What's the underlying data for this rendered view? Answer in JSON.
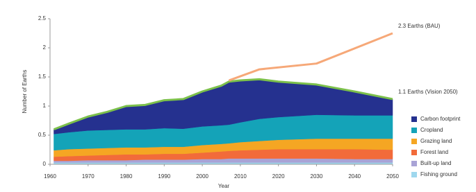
{
  "chart_data": {
    "type": "stacked-area",
    "x_label": "Year",
    "y_label": "Number of Earths",
    "x": [
      1961,
      1965,
      1970,
      1975,
      1980,
      1985,
      1990,
      1995,
      2000,
      2005,
      2007,
      2010,
      2015,
      2020,
      2030,
      2040,
      2050
    ],
    "series": [
      {
        "name": "Fishing ground",
        "color": "#9fd8ee",
        "values": [
          0.03,
          0.03,
          0.03,
          0.03,
          0.03,
          0.03,
          0.03,
          0.03,
          0.03,
          0.03,
          0.03,
          0.03,
          0.03,
          0.03,
          0.03,
          0.03,
          0.03
        ]
      },
      {
        "name": "Built-up land",
        "color": "#a9a3d6",
        "values": [
          0.03,
          0.03,
          0.04,
          0.04,
          0.04,
          0.05,
          0.05,
          0.05,
          0.06,
          0.06,
          0.07,
          0.07,
          0.07,
          0.07,
          0.07,
          0.06,
          0.06
        ]
      },
      {
        "name": "Forest land",
        "color": "#f26b3a",
        "values": [
          0.07,
          0.08,
          0.08,
          0.09,
          0.1,
          0.09,
          0.1,
          0.1,
          0.11,
          0.13,
          0.13,
          0.14,
          0.15,
          0.16,
          0.16,
          0.17,
          0.16
        ]
      },
      {
        "name": "Grazing land",
        "color": "#f5a623",
        "values": [
          0.11,
          0.12,
          0.12,
          0.12,
          0.12,
          0.12,
          0.12,
          0.12,
          0.13,
          0.13,
          0.13,
          0.14,
          0.15,
          0.16,
          0.18,
          0.18,
          0.19
        ]
      },
      {
        "name": "Cropland",
        "color": "#14a3b8",
        "values": [
          0.28,
          0.29,
          0.31,
          0.31,
          0.31,
          0.31,
          0.32,
          0.31,
          0.32,
          0.32,
          0.32,
          0.34,
          0.38,
          0.39,
          0.41,
          0.4,
          0.4
        ]
      },
      {
        "name": "Carbon footprint",
        "color": "#25318f",
        "values": [
          0.08,
          0.15,
          0.24,
          0.31,
          0.4,
          0.42,
          0.48,
          0.51,
          0.6,
          0.68,
          0.74,
          0.72,
          0.68,
          0.61,
          0.52,
          0.41,
          0.28
        ]
      }
    ],
    "lines": [
      {
        "label": "1.1 Earths (Vision 2050)",
        "color": "#7cc04b",
        "x": [
          1961,
          1965,
          1970,
          1975,
          1980,
          1985,
          1990,
          1995,
          2000,
          2005,
          2007,
          2010,
          2015,
          2020,
          2030,
          2040,
          2050
        ],
        "values": [
          0.6,
          0.7,
          0.82,
          0.9,
          1.0,
          1.02,
          1.1,
          1.12,
          1.25,
          1.35,
          1.42,
          1.44,
          1.46,
          1.42,
          1.37,
          1.25,
          1.12
        ]
      },
      {
        "label": "2.3 Earths (BAU)",
        "color": "#f6a878",
        "x": [
          2007,
          2015,
          2030,
          2050
        ],
        "values": [
          1.44,
          1.63,
          1.73,
          2.25
        ]
      }
    ],
    "xlim": [
      1960,
      2050
    ],
    "xticks": [
      1960,
      1970,
      1980,
      1990,
      2000,
      2010,
      2020,
      2030,
      2040,
      2050
    ],
    "ylim": [
      0,
      2.5
    ],
    "yticks": [
      0,
      0.5,
      1,
      1.5,
      2,
      2.5
    ],
    "legend": "right"
  }
}
